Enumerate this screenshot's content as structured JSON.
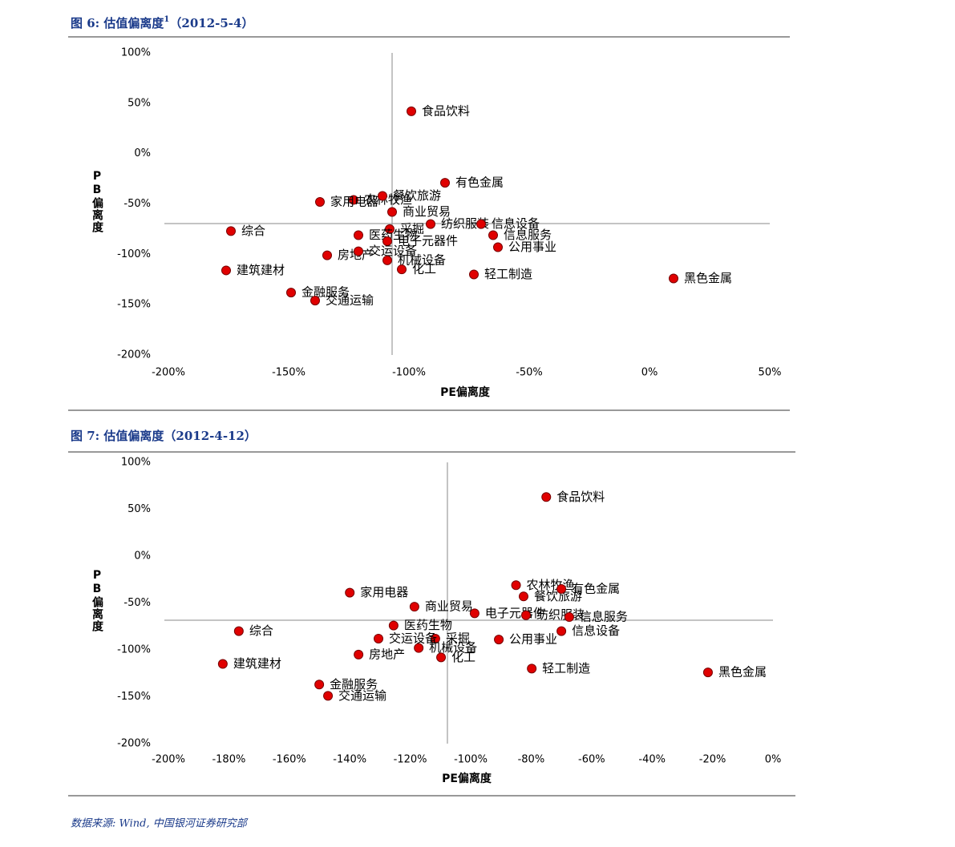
{
  "chart_data": [
    {
      "type": "scatter",
      "title": "图 6: 估值偏离度",
      "title_superscript": "1",
      "subtitle": "（2012-5-4）",
      "x_label": "PE偏离度",
      "y_label": "PB偏离度",
      "color": "#e00000",
      "xlim": [
        -200,
        50
      ],
      "ylim": [
        -200,
        100
      ],
      "xticks": [
        {
          "value": -200,
          "label": "-200%"
        },
        {
          "value": -150,
          "label": "-150%"
        },
        {
          "value": -100,
          "label": "-100%"
        },
        {
          "value": -50,
          "label": "-50%"
        },
        {
          "value": 0,
          "label": "0%"
        },
        {
          "value": 50,
          "label": "50%"
        }
      ],
      "yticks": [
        {
          "value": 100,
          "label": "100%"
        },
        {
          "value": 50,
          "label": "50%"
        },
        {
          "value": 0,
          "label": "0%"
        },
        {
          "value": -50,
          "label": "-50%"
        },
        {
          "value": -100,
          "label": "-100%"
        },
        {
          "value": -150,
          "label": "-150%"
        },
        {
          "value": -200,
          "label": "-200%"
        }
      ],
      "reference_x": -107,
      "reference_y": -69.5,
      "labels": [
        "食品饮料",
        "有色金属",
        "农林牧渔",
        "餐饮旅游",
        "家用电器",
        "商业贸易",
        "采掘",
        "综合",
        "纺织服装",
        "信息设备",
        "信息服务",
        "医药生物",
        "电子元器件",
        "建筑建材",
        "房地产",
        "交运设备",
        "机械设备",
        "公用事业",
        "化工",
        "轻工制造",
        "黑色金属",
        "金融服务",
        "交通运输"
      ],
      "x": [
        -99,
        -85,
        -123,
        -111,
        -137,
        -107,
        -108,
        -174,
        -91,
        -70,
        -65,
        -121,
        -109,
        -176,
        -134,
        -121,
        -109,
        -63,
        -103,
        -73,
        10,
        -149,
        -139
      ],
      "values": [
        42,
        -29,
        -46,
        -42,
        -48,
        -58,
        -75,
        -77,
        -70,
        -70,
        -81,
        -81,
        -87,
        -116,
        -101,
        -97,
        -106,
        -93,
        -115,
        -120,
        -124,
        -138,
        -146
      ]
    },
    {
      "type": "scatter",
      "title": "图 7: 估值偏离度",
      "subtitle": "（2012-4-12）",
      "x_label": "PE偏离度",
      "y_label": "PB偏离度",
      "color": "#e00000",
      "xlim": [
        -200,
        0
      ],
      "ylim": [
        -200,
        100
      ],
      "xticks": [
        {
          "value": -200,
          "label": "-200%"
        },
        {
          "value": -180,
          "label": "-180%"
        },
        {
          "value": -160,
          "label": "-160%"
        },
        {
          "value": -140,
          "label": "-140%"
        },
        {
          "value": -120,
          "label": "-120%"
        },
        {
          "value": -100,
          "label": "-100%"
        },
        {
          "value": -80,
          "label": "-80%"
        },
        {
          "value": -60,
          "label": "-60%"
        },
        {
          "value": -40,
          "label": "-40%"
        },
        {
          "value": -20,
          "label": "-20%"
        },
        {
          "value": 0,
          "label": "0%"
        }
      ],
      "yticks": [
        {
          "value": 100,
          "label": "100%"
        },
        {
          "value": 50,
          "label": "50%"
        },
        {
          "value": 0,
          "label": "0%"
        },
        {
          "value": -50,
          "label": "-50%"
        },
        {
          "value": -100,
          "label": "-100%"
        },
        {
          "value": -150,
          "label": "-150%"
        },
        {
          "value": -200,
          "label": "-200%"
        }
      ],
      "reference_x": -107.7,
      "reference_y": -68.4,
      "labels": [
        "食品饮料",
        "农林牧渔",
        "餐饮旅游",
        "有色金属",
        "家用电器",
        "商业贸易",
        "电子元器件",
        "纺织服装",
        "信息设备",
        "信息服务",
        "医药生物",
        "采掘",
        "交运设备",
        "房地产",
        "机械设备",
        "化工",
        "公用事业",
        "轻工制造",
        "综合",
        "建筑建材",
        "金融服务",
        "交通运输",
        "黑色金属"
      ],
      "x": [
        -75,
        -85,
        -82.5,
        -70,
        -140,
        -118.6,
        -98.7,
        -81.7,
        -70,
        -67.4,
        -125.5,
        -111.7,
        -130.5,
        -137.1,
        -117.2,
        -109.8,
        -90.7,
        -79.8,
        -176.7,
        -182,
        -150.1,
        -147.2,
        -21.5
      ],
      "values": [
        63,
        -31,
        -43,
        -35,
        -39,
        -54,
        -61,
        -63,
        -80,
        -65,
        -74,
        -88,
        -88,
        -105,
        -98,
        -108,
        -89,
        -120,
        -80,
        -115,
        -137,
        -149,
        -124
      ]
    }
  ],
  "source": "数据来源: Wind, 中国银河证券研究部"
}
